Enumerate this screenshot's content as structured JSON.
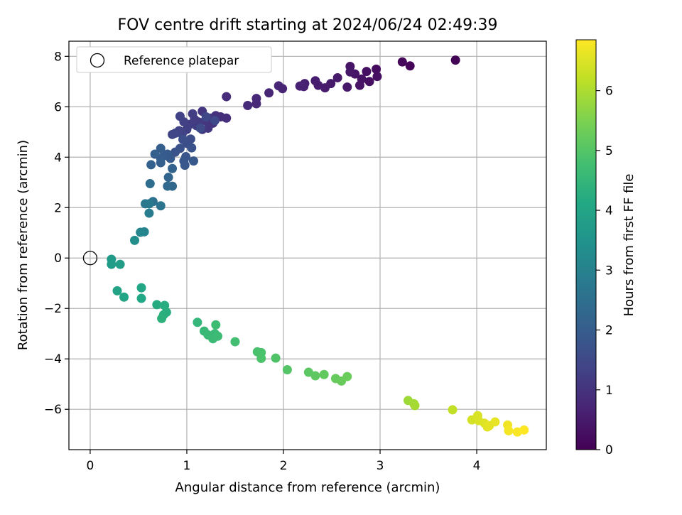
{
  "chart_data": {
    "type": "scatter",
    "title": "FOV centre drift starting at 2024/06/24 02:49:39",
    "xlabel": "Angular distance from reference (arcmin)",
    "ylabel": "Rotation from reference (arcmin)",
    "xlim": [
      -0.22,
      4.72
    ],
    "ylim": [
      -7.6,
      8.6
    ],
    "x_ticks": [
      0,
      1,
      2,
      3,
      4
    ],
    "y_ticks": [
      -6,
      -4,
      -2,
      0,
      2,
      4,
      6,
      8
    ],
    "grid": true,
    "legend": {
      "position": "top-left",
      "entries": [
        "Reference platepar"
      ]
    },
    "reference_point": {
      "x": 0,
      "y": 0,
      "marker": "hollow-circle"
    },
    "colorbar": {
      "label": "Hours from first FF file",
      "colormap": "viridis",
      "range": [
        0,
        6.85
      ],
      "ticks": [
        0,
        1,
        2,
        3,
        4,
        5,
        6
      ]
    },
    "series": [
      {
        "points": [
          {
            "x": 3.78,
            "y": 7.85,
            "c": 0.05
          },
          {
            "x": 3.31,
            "y": 7.62,
            "c": 0.1
          },
          {
            "x": 3.23,
            "y": 7.78,
            "c": 0.12
          },
          {
            "x": 2.96,
            "y": 7.49,
            "c": 0.2
          },
          {
            "x": 2.97,
            "y": 7.2,
            "c": 0.25
          },
          {
            "x": 2.89,
            "y": 7.0,
            "c": 0.28
          },
          {
            "x": 2.86,
            "y": 7.4,
            "c": 0.3
          },
          {
            "x": 2.81,
            "y": 7.1,
            "c": 0.33
          },
          {
            "x": 2.79,
            "y": 6.85,
            "c": 0.35
          },
          {
            "x": 2.74,
            "y": 7.3,
            "c": 0.37
          },
          {
            "x": 2.69,
            "y": 7.6,
            "c": 0.4
          },
          {
            "x": 2.69,
            "y": 7.38,
            "c": 0.42
          },
          {
            "x": 2.66,
            "y": 6.78,
            "c": 0.45
          },
          {
            "x": 2.56,
            "y": 7.15,
            "c": 0.48
          },
          {
            "x": 2.49,
            "y": 6.92,
            "c": 0.5
          },
          {
            "x": 2.43,
            "y": 6.75,
            "c": 0.52
          },
          {
            "x": 2.36,
            "y": 6.85,
            "c": 0.55
          },
          {
            "x": 2.33,
            "y": 7.03,
            "c": 0.57
          },
          {
            "x": 2.22,
            "y": 6.92,
            "c": 0.6
          },
          {
            "x": 2.21,
            "y": 6.8,
            "c": 0.62
          },
          {
            "x": 2.17,
            "y": 6.82,
            "c": 0.64
          },
          {
            "x": 1.99,
            "y": 6.72,
            "c": 0.68
          },
          {
            "x": 1.95,
            "y": 6.83,
            "c": 0.7
          },
          {
            "x": 1.85,
            "y": 6.55,
            "c": 0.73
          },
          {
            "x": 1.72,
            "y": 6.33,
            "c": 0.77
          },
          {
            "x": 1.72,
            "y": 6.12,
            "c": 0.79
          },
          {
            "x": 1.63,
            "y": 6.05,
            "c": 0.82
          },
          {
            "x": 1.41,
            "y": 6.4,
            "c": 0.86
          },
          {
            "x": 1.41,
            "y": 5.55,
            "c": 0.9
          },
          {
            "x": 1.35,
            "y": 5.6,
            "c": 0.93
          },
          {
            "x": 1.3,
            "y": 5.65,
            "c": 0.96
          },
          {
            "x": 1.27,
            "y": 5.35,
            "c": 1.0
          },
          {
            "x": 1.25,
            "y": 5.55,
            "c": 1.02
          },
          {
            "x": 1.22,
            "y": 5.15,
            "c": 1.05
          },
          {
            "x": 1.19,
            "y": 5.45,
            "c": 1.08
          },
          {
            "x": 1.16,
            "y": 5.82,
            "c": 1.1
          },
          {
            "x": 1.16,
            "y": 5.1,
            "c": 1.12
          },
          {
            "x": 1.12,
            "y": 5.4,
            "c": 1.15
          },
          {
            "x": 1.1,
            "y": 5.25,
            "c": 1.17
          },
          {
            "x": 1.08,
            "y": 5.5,
            "c": 1.2
          },
          {
            "x": 1.06,
            "y": 5.72,
            "c": 1.22
          },
          {
            "x": 1.03,
            "y": 5.3,
            "c": 1.25
          },
          {
            "x": 1.0,
            "y": 5.1,
            "c": 1.28
          },
          {
            "x": 0.97,
            "y": 5.4,
            "c": 1.3
          },
          {
            "x": 0.93,
            "y": 5.62,
            "c": 1.33
          },
          {
            "x": 0.95,
            "y": 4.92,
            "c": 1.36
          },
          {
            "x": 0.92,
            "y": 5.05,
            "c": 1.38
          },
          {
            "x": 0.88,
            "y": 4.95,
            "c": 1.4
          },
          {
            "x": 0.85,
            "y": 4.9,
            "c": 1.43
          },
          {
            "x": 1.29,
            "y": 5.45,
            "c": 1.46
          },
          {
            "x": 1.2,
            "y": 5.6,
            "c": 1.5
          },
          {
            "x": 1.14,
            "y": 5.15,
            "c": 1.55
          },
          {
            "x": 1.04,
            "y": 4.72,
            "c": 1.6
          },
          {
            "x": 1.0,
            "y": 4.55,
            "c": 1.63
          },
          {
            "x": 0.96,
            "y": 4.7,
            "c": 1.66
          },
          {
            "x": 0.93,
            "y": 4.35,
            "c": 1.7
          },
          {
            "x": 0.88,
            "y": 4.2,
            "c": 1.74
          },
          {
            "x": 1.05,
            "y": 4.37,
            "c": 1.77
          },
          {
            "x": 0.99,
            "y": 4.02,
            "c": 1.8
          },
          {
            "x": 0.97,
            "y": 3.85,
            "c": 1.83
          },
          {
            "x": 0.98,
            "y": 3.68,
            "c": 1.86
          },
          {
            "x": 1.07,
            "y": 3.85,
            "c": 1.88
          },
          {
            "x": 0.83,
            "y": 3.95,
            "c": 1.9
          },
          {
            "x": 0.8,
            "y": 4.12,
            "c": 1.93
          },
          {
            "x": 0.76,
            "y": 4.05,
            "c": 1.96
          },
          {
            "x": 0.73,
            "y": 3.95,
            "c": 2.0
          },
          {
            "x": 0.73,
            "y": 4.35,
            "c": 2.02
          },
          {
            "x": 0.67,
            "y": 4.12,
            "c": 2.05
          },
          {
            "x": 0.73,
            "y": 3.78,
            "c": 2.08
          },
          {
            "x": 0.63,
            "y": 3.7,
            "c": 2.12
          },
          {
            "x": 0.85,
            "y": 3.55,
            "c": 2.16
          },
          {
            "x": 0.81,
            "y": 3.2,
            "c": 2.22
          },
          {
            "x": 0.85,
            "y": 2.85,
            "c": 2.28
          },
          {
            "x": 0.8,
            "y": 2.85,
            "c": 2.34
          },
          {
            "x": 0.62,
            "y": 2.95,
            "c": 2.44
          },
          {
            "x": 0.65,
            "y": 2.24,
            "c": 2.56
          },
          {
            "x": 0.73,
            "y": 2.07,
            "c": 2.62
          },
          {
            "x": 0.57,
            "y": 2.15,
            "c": 2.72
          },
          {
            "x": 0.61,
            "y": 2.15,
            "c": 2.78
          },
          {
            "x": 0.61,
            "y": 1.78,
            "c": 2.86
          },
          {
            "x": 0.56,
            "y": 1.04,
            "c": 3.05
          },
          {
            "x": 0.52,
            "y": 1.02,
            "c": 3.12
          },
          {
            "x": 0.46,
            "y": 0.7,
            "c": 3.35
          },
          {
            "x": 0.22,
            "y": -0.05,
            "c": 3.7
          },
          {
            "x": 0.22,
            "y": -0.25,
            "c": 3.75
          },
          {
            "x": 0.31,
            "y": -0.25,
            "c": 3.8
          },
          {
            "x": 0.28,
            "y": -1.3,
            "c": 3.95
          },
          {
            "x": 0.35,
            "y": -1.55,
            "c": 4.0
          },
          {
            "x": 0.53,
            "y": -1.18,
            "c": 4.05
          },
          {
            "x": 0.53,
            "y": -1.6,
            "c": 4.1
          },
          {
            "x": 0.69,
            "y": -1.85,
            "c": 4.2
          },
          {
            "x": 0.77,
            "y": -1.88,
            "c": 4.25
          },
          {
            "x": 0.79,
            "y": -2.15,
            "c": 4.28
          },
          {
            "x": 0.76,
            "y": -2.25,
            "c": 4.3
          },
          {
            "x": 0.74,
            "y": -2.4,
            "c": 4.35
          },
          {
            "x": 1.11,
            "y": -2.55,
            "c": 4.5
          },
          {
            "x": 1.18,
            "y": -2.9,
            "c": 4.55
          },
          {
            "x": 1.22,
            "y": -3.05,
            "c": 4.58
          },
          {
            "x": 1.29,
            "y": -3.0,
            "c": 4.6
          },
          {
            "x": 1.27,
            "y": -3.2,
            "c": 4.63
          },
          {
            "x": 1.32,
            "y": -3.1,
            "c": 4.65
          },
          {
            "x": 1.3,
            "y": -2.65,
            "c": 4.68
          },
          {
            "x": 1.5,
            "y": -3.32,
            "c": 4.75
          },
          {
            "x": 1.73,
            "y": -3.72,
            "c": 4.85
          },
          {
            "x": 1.77,
            "y": -3.75,
            "c": 4.88
          },
          {
            "x": 1.77,
            "y": -3.98,
            "c": 4.9
          },
          {
            "x": 1.92,
            "y": -3.97,
            "c": 4.95
          },
          {
            "x": 2.04,
            "y": -4.43,
            "c": 5.0
          },
          {
            "x": 2.26,
            "y": -4.53,
            "c": 5.1
          },
          {
            "x": 2.33,
            "y": -4.67,
            "c": 5.15
          },
          {
            "x": 2.42,
            "y": -4.62,
            "c": 5.18
          },
          {
            "x": 2.54,
            "y": -4.78,
            "c": 5.22
          },
          {
            "x": 2.6,
            "y": -4.88,
            "c": 5.25
          },
          {
            "x": 2.66,
            "y": -4.7,
            "c": 5.28
          },
          {
            "x": 3.29,
            "y": -5.65,
            "c": 5.85
          },
          {
            "x": 3.35,
            "y": -5.78,
            "c": 5.9
          },
          {
            "x": 3.36,
            "y": -5.85,
            "c": 5.92
          },
          {
            "x": 3.75,
            "y": -6.02,
            "c": 6.2
          },
          {
            "x": 3.95,
            "y": -6.42,
            "c": 6.4
          },
          {
            "x": 4.01,
            "y": -6.25,
            "c": 6.45
          },
          {
            "x": 4.02,
            "y": -6.45,
            "c": 6.48
          },
          {
            "x": 4.08,
            "y": -6.55,
            "c": 6.52
          },
          {
            "x": 4.11,
            "y": -6.7,
            "c": 6.55
          },
          {
            "x": 4.13,
            "y": -6.65,
            "c": 6.58
          },
          {
            "x": 4.19,
            "y": -6.5,
            "c": 6.6
          },
          {
            "x": 4.32,
            "y": -6.62,
            "c": 6.7
          },
          {
            "x": 4.33,
            "y": -6.85,
            "c": 6.75
          },
          {
            "x": 4.42,
            "y": -6.9,
            "c": 6.8
          },
          {
            "x": 4.49,
            "y": -6.82,
            "c": 6.85
          }
        ]
      }
    ]
  }
}
